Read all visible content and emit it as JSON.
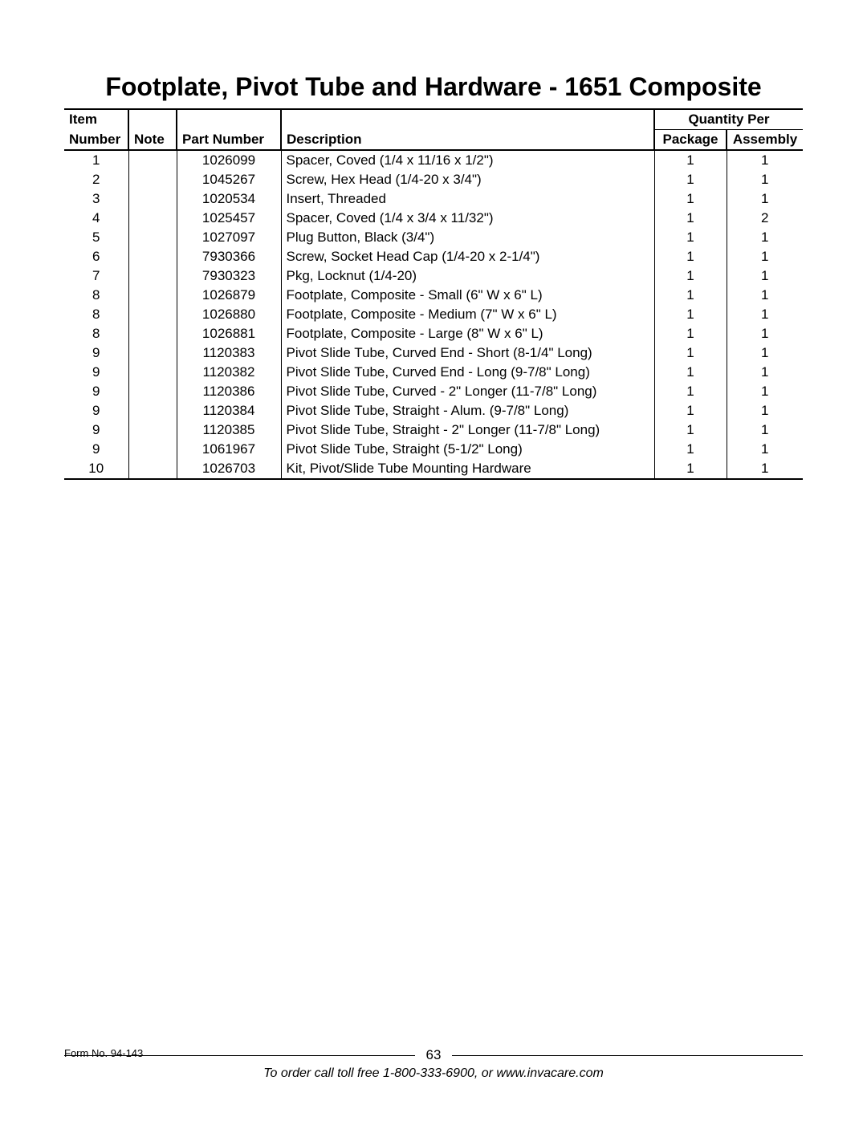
{
  "title": "Footplate, Pivot Tube and Hardware - 1651 Composite",
  "headers": {
    "item_line1": "Item",
    "item_line2": "Number",
    "note": "Note",
    "part_number": "Part Number",
    "description": "Description",
    "qty_per": "Quantity Per",
    "package": "Package",
    "assembly": "Assembly"
  },
  "rows": [
    {
      "item": "1",
      "note": "",
      "part": "1026099",
      "desc": "Spacer, Coved (1/4 x 11/16 x 1/2\")",
      "pkg": "1",
      "asm": "1"
    },
    {
      "item": "2",
      "note": "",
      "part": "1045267",
      "desc": "Screw, Hex Head (1/4-20 x 3/4\")",
      "pkg": "1",
      "asm": "1"
    },
    {
      "item": "3",
      "note": "",
      "part": "1020534",
      "desc": "Insert, Threaded",
      "pkg": "1",
      "asm": "1"
    },
    {
      "item": "4",
      "note": "",
      "part": "1025457",
      "desc": "Spacer, Coved (1/4 x 3/4 x 11/32\")",
      "pkg": "1",
      "asm": "2"
    },
    {
      "item": "5",
      "note": "",
      "part": "1027097",
      "desc": "Plug Button, Black (3/4\")",
      "pkg": "1",
      "asm": "1"
    },
    {
      "item": "6",
      "note": "",
      "part": "7930366",
      "desc": "Screw, Socket Head Cap (1/4-20 x 2-1/4\")",
      "pkg": "1",
      "asm": "1"
    },
    {
      "item": "7",
      "note": "",
      "part": "7930323",
      "desc": "Pkg, Locknut (1/4-20)",
      "pkg": "1",
      "asm": "1"
    },
    {
      "item": "8",
      "note": "",
      "part": "1026879",
      "desc": "Footplate, Composite - Small (6\" W x 6\" L)",
      "pkg": "1",
      "asm": "1"
    },
    {
      "item": "8",
      "note": "",
      "part": "1026880",
      "desc": "Footplate, Composite - Medium (7\" W x 6\" L)",
      "pkg": "1",
      "asm": "1"
    },
    {
      "item": "8",
      "note": "",
      "part": "1026881",
      "desc": "Footplate, Composite - Large (8\" W x 6\" L)",
      "pkg": "1",
      "asm": "1"
    },
    {
      "item": "9",
      "note": "",
      "part": "1120383",
      "desc": "Pivot Slide Tube, Curved End - Short (8-1/4\" Long)",
      "pkg": "1",
      "asm": "1"
    },
    {
      "item": "9",
      "note": "",
      "part": "1120382",
      "desc": "Pivot Slide Tube, Curved End - Long (9-7/8\" Long)",
      "pkg": "1",
      "asm": "1"
    },
    {
      "item": "9",
      "note": "",
      "part": "1120386",
      "desc": "Pivot Slide Tube, Curved - 2\" Longer (11-7/8\" Long)",
      "pkg": "1",
      "asm": "1"
    },
    {
      "item": "9",
      "note": "",
      "part": "1120384",
      "desc": "Pivot Slide Tube, Straight - Alum. (9-7/8\" Long)",
      "pkg": "1",
      "asm": "1"
    },
    {
      "item": "9",
      "note": "",
      "part": "1120385",
      "desc": "Pivot Slide Tube, Straight - 2\" Longer (11-7/8\" Long)",
      "pkg": "1",
      "asm": "1"
    },
    {
      "item": "9",
      "note": "",
      "part": "1061967",
      "desc": "Pivot Slide Tube, Straight (5-1/2\" Long)",
      "pkg": "1",
      "asm": "1"
    },
    {
      "item": "10",
      "note": "",
      "part": "1026703",
      "desc": "Kit, Pivot/Slide Tube Mounting Hardware",
      "pkg": "1",
      "asm": "1"
    }
  ],
  "footer": {
    "page_number": "63",
    "form_no": "Form No. 94-143",
    "order_line": "To order call toll free 1-800-333-6900, or www.invacare.com"
  }
}
